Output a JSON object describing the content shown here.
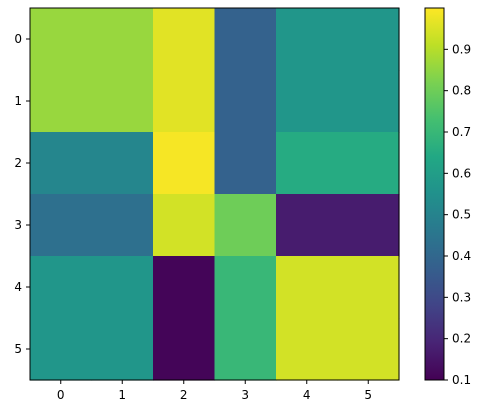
{
  "chart_data": {
    "type": "heatmap",
    "title": "",
    "xlabel": "",
    "ylabel": "",
    "x_ticks": [
      "0",
      "1",
      "2",
      "3",
      "4",
      "5"
    ],
    "y_ticks": [
      "0",
      "1",
      "2",
      "3",
      "4",
      "5"
    ],
    "values": [
      [
        0.86,
        0.86,
        0.96,
        0.38,
        0.57,
        0.57
      ],
      [
        0.86,
        0.86,
        0.96,
        0.38,
        0.57,
        0.57
      ],
      [
        0.51,
        0.51,
        0.99,
        0.38,
        0.65,
        0.65
      ],
      [
        0.43,
        0.43,
        0.94,
        0.8,
        0.17,
        0.17
      ],
      [
        0.57,
        0.57,
        0.11,
        0.7,
        0.94,
        0.94
      ],
      [
        0.57,
        0.57,
        0.11,
        0.7,
        0.94,
        0.94
      ]
    ],
    "colorbar": {
      "colormap": "viridis",
      "min": 0.1,
      "max": 1.0,
      "ticks": [
        "0.1",
        "0.2",
        "0.3",
        "0.4",
        "0.5",
        "0.6",
        "0.7",
        "0.8",
        "0.9"
      ]
    }
  }
}
